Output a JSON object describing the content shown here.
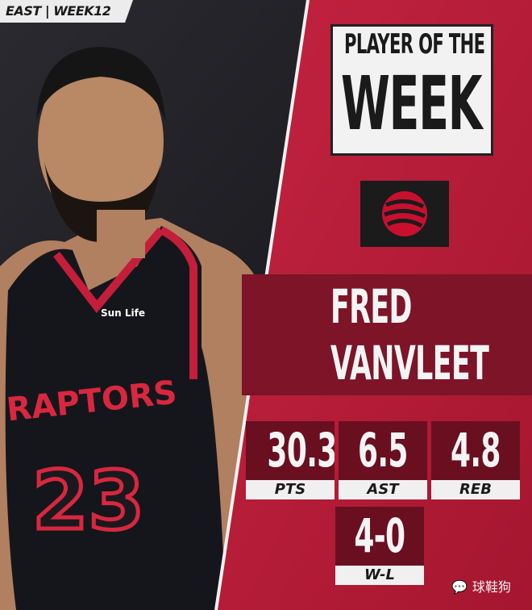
{
  "tag": "EAST | WEEK12",
  "title": {
    "line1": "PLAYER OF THE",
    "line2": "WEEK"
  },
  "team_logo": "raptors-basketball-claw-logo",
  "player": {
    "first": "FRED",
    "last": "VANVLEET",
    "jersey_number": "23",
    "jersey_text": "RAPTORS",
    "sponsor": "Sun Life"
  },
  "stats": [
    {
      "value": "30.3",
      "label": "PTS"
    },
    {
      "value": "6.5",
      "label": "AST"
    },
    {
      "value": "4.8",
      "label": "REB"
    },
    {
      "value": "4-0",
      "label": "W-L"
    }
  ],
  "watermark": "球鞋狗",
  "colors": {
    "panel_red": "#b81e3a",
    "dark_red": "#6a0f20",
    "white": "#f0f0f0"
  }
}
